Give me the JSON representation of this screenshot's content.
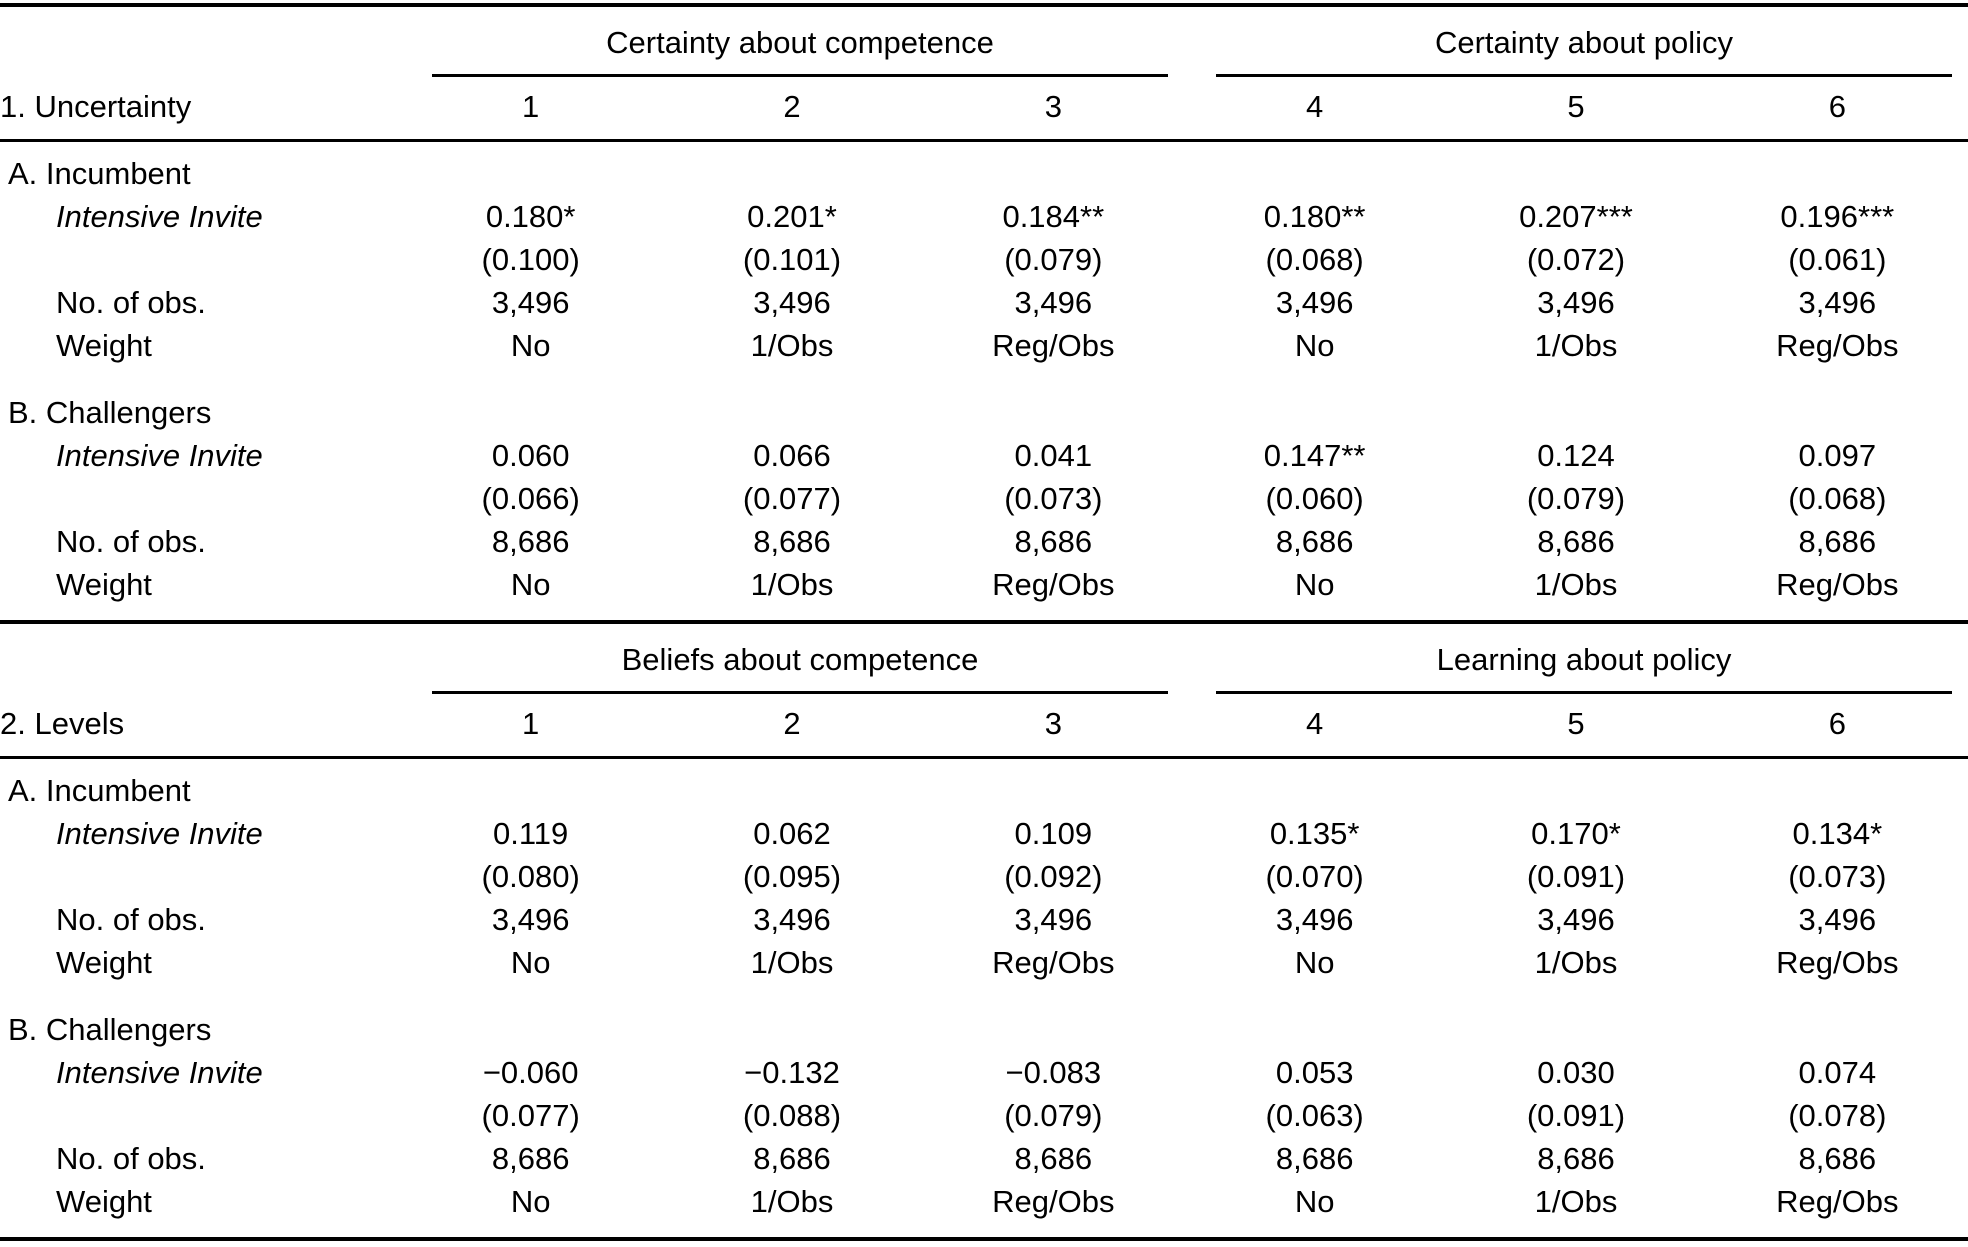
{
  "table": {
    "panels": [
      {
        "row_label": "1. Uncertainty",
        "spanners": [
          "Certainty about competence",
          "Certainty about policy"
        ],
        "columns": [
          "1",
          "2",
          "3",
          "4",
          "5",
          "6"
        ],
        "sections": [
          {
            "label": "A. Incumbent",
            "var_label": "Intensive Invite",
            "estimates": [
              {
                "value": "0.180",
                "stars": "*"
              },
              {
                "value": "0.201",
                "stars": "*"
              },
              {
                "value": "0.184",
                "stars": "**"
              },
              {
                "value": "0.180",
                "stars": "**"
              },
              {
                "value": "0.207",
                "stars": "***"
              },
              {
                "value": "0.196",
                "stars": "***"
              }
            ],
            "std_errors": [
              "(0.100)",
              "(0.101)",
              "(0.079)",
              "(0.068)",
              "(0.072)",
              "(0.061)"
            ],
            "obs_label": "No. of obs.",
            "obs": [
              "3,496",
              "3,496",
              "3,496",
              "3,496",
              "3,496",
              "3,496"
            ],
            "weight_label": "Weight",
            "weights": [
              "No",
              "1/Obs",
              "Reg/Obs",
              "No",
              "1/Obs",
              "Reg/Obs"
            ]
          },
          {
            "label": "B. Challengers",
            "var_label": "Intensive Invite",
            "estimates": [
              {
                "value": "0.060",
                "stars": ""
              },
              {
                "value": "0.066",
                "stars": ""
              },
              {
                "value": "0.041",
                "stars": ""
              },
              {
                "value": "0.147",
                "stars": "**"
              },
              {
                "value": "0.124",
                "stars": ""
              },
              {
                "value": "0.097",
                "stars": ""
              }
            ],
            "std_errors": [
              "(0.066)",
              "(0.077)",
              "(0.073)",
              "(0.060)",
              "(0.079)",
              "(0.068)"
            ],
            "obs_label": "No. of obs.",
            "obs": [
              "8,686",
              "8,686",
              "8,686",
              "8,686",
              "8,686",
              "8,686"
            ],
            "weight_label": "Weight",
            "weights": [
              "No",
              "1/Obs",
              "Reg/Obs",
              "No",
              "1/Obs",
              "Reg/Obs"
            ]
          }
        ]
      },
      {
        "row_label": "2. Levels",
        "spanners": [
          "Beliefs about competence",
          "Learning about policy"
        ],
        "columns": [
          "1",
          "2",
          "3",
          "4",
          "5",
          "6"
        ],
        "sections": [
          {
            "label": "A. Incumbent",
            "var_label": "Intensive Invite",
            "estimates": [
              {
                "value": "0.119",
                "stars": ""
              },
              {
                "value": "0.062",
                "stars": ""
              },
              {
                "value": "0.109",
                "stars": ""
              },
              {
                "value": "0.135",
                "stars": "*"
              },
              {
                "value": "0.170",
                "stars": "*"
              },
              {
                "value": "0.134",
                "stars": "*"
              }
            ],
            "std_errors": [
              "(0.080)",
              "(0.095)",
              "(0.092)",
              "(0.070)",
              "(0.091)",
              "(0.073)"
            ],
            "obs_label": "No. of obs.",
            "obs": [
              "3,496",
              "3,496",
              "3,496",
              "3,496",
              "3,496",
              "3,496"
            ],
            "weight_label": "Weight",
            "weights": [
              "No",
              "1/Obs",
              "Reg/Obs",
              "No",
              "1/Obs",
              "Reg/Obs"
            ]
          },
          {
            "label": "B. Challengers",
            "var_label": "Intensive Invite",
            "estimates": [
              {
                "value": "−0.060",
                "stars": ""
              },
              {
                "value": "−0.132",
                "stars": ""
              },
              {
                "value": "−0.083",
                "stars": ""
              },
              {
                "value": "0.053",
                "stars": ""
              },
              {
                "value": "0.030",
                "stars": ""
              },
              {
                "value": "0.074",
                "stars": ""
              }
            ],
            "std_errors": [
              "(0.077)",
              "(0.088)",
              "(0.079)",
              "(0.063)",
              "(0.091)",
              "(0.078)"
            ],
            "obs_label": "No. of obs.",
            "obs": [
              "8,686",
              "8,686",
              "8,686",
              "8,686",
              "8,686",
              "8,686"
            ],
            "weight_label": "Weight",
            "weights": [
              "No",
              "1/Obs",
              "Reg/Obs",
              "No",
              "1/Obs",
              "Reg/Obs"
            ]
          }
        ]
      }
    ]
  }
}
